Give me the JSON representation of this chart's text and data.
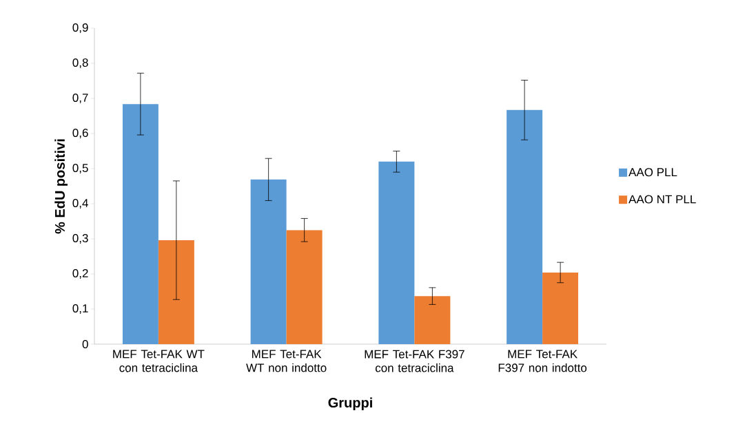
{
  "chart_data": {
    "type": "bar",
    "xlabel": "Gruppi",
    "ylabel": "% EdU positivi",
    "categories": [
      "MEF Tet-FAK WT con tetraciclina",
      "MEF Tet-FAK WT non indotto",
      "MEF Tet-FAK F397 con tetraciclina",
      "MEF Tet-FAK F397 non indotto"
    ],
    "series": [
      {
        "name": "AAO PLL",
        "color": "#5b9bd5",
        "values": [
          0.684,
          0.469,
          0.52,
          0.667
        ],
        "errors": [
          0.088,
          0.06,
          0.03,
          0.085
        ]
      },
      {
        "name": "AAO NT PLL",
        "color": "#ed7d31",
        "values": [
          0.296,
          0.325,
          0.137,
          0.204
        ],
        "errors": [
          0.169,
          0.033,
          0.024,
          0.029
        ]
      }
    ],
    "ylim": [
      0,
      0.9
    ],
    "yticks": [
      0,
      {
        "value": 0.1,
        "label": "0,1"
      },
      {
        "value": 0.2,
        "label": "0,2"
      },
      {
        "value": 0.3,
        "label": "0,3"
      },
      {
        "value": 0.4,
        "label": "0,4"
      },
      {
        "value": 0.5,
        "label": "0,5"
      },
      {
        "value": 0.6,
        "label": "0,6"
      },
      {
        "value": 0.7,
        "label": "0,7"
      },
      {
        "value": 0.8,
        "label": "0,8"
      },
      {
        "value": 0.9,
        "label": "0,9"
      }
    ],
    "grid": false,
    "legend": "right"
  }
}
